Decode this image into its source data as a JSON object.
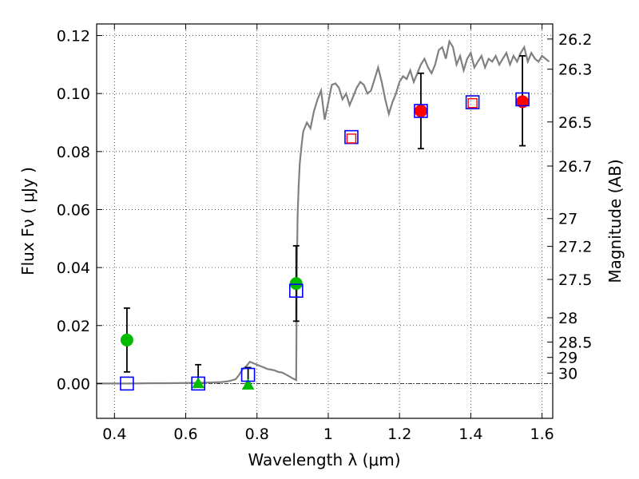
{
  "chart_data": {
    "type": "scatter",
    "title": "",
    "xlabel": "Wavelength  λ (μm)",
    "ylabel": "Flux  Fν  ( μJy )",
    "y2label": "Magnitude (AB)",
    "xlim": [
      0.35,
      1.63
    ],
    "ylim": [
      -0.012,
      0.124
    ],
    "grid": true,
    "xticks": [
      0.4,
      0.6,
      0.8,
      1.0,
      1.2,
      1.4,
      1.6
    ],
    "xtick_labels": [
      "0.4",
      "0.6",
      "0.8",
      "1",
      "1.2",
      "1.4",
      "1.6"
    ],
    "yticks": [
      0.0,
      0.02,
      0.04,
      0.06,
      0.08,
      0.1,
      0.12
    ],
    "ytick_labels": [
      "0.00",
      "0.02",
      "0.04",
      "0.06",
      "0.08",
      "0.10",
      "0.12"
    ],
    "mag_ticks": [
      {
        "label": "26.2",
        "flux": 0.1188
      },
      {
        "label": "26.3",
        "flux": 0.1084
      },
      {
        "label": "26.5",
        "flux": 0.0902
      },
      {
        "label": "26.7",
        "flux": 0.075
      },
      {
        "label": "27",
        "flux": 0.0569
      },
      {
        "label": "27.2",
        "flux": 0.0473
      },
      {
        "label": "27.5",
        "flux": 0.0359
      },
      {
        "label": "28",
        "flux": 0.0227
      },
      {
        "label": "28.5",
        "flux": 0.0143
      },
      {
        "label": "29",
        "flux": 0.009
      },
      {
        "label": "30",
        "flux": 0.0036
      }
    ],
    "series": [
      {
        "type": "line",
        "color": "#808080",
        "x": [
          0.35,
          0.4,
          0.45,
          0.5,
          0.55,
          0.6,
          0.65,
          0.7,
          0.72,
          0.74,
          0.75,
          0.76,
          0.77,
          0.78,
          0.79,
          0.8,
          0.81,
          0.82,
          0.83,
          0.84,
          0.85,
          0.86,
          0.87,
          0.88,
          0.89,
          0.9,
          0.905,
          0.91,
          0.912,
          0.914,
          0.917,
          0.92,
          0.925,
          0.93,
          0.94,
          0.95,
          0.96,
          0.97,
          0.98,
          0.99,
          1.0,
          1.01,
          1.02,
          1.03,
          1.04,
          1.05,
          1.06,
          1.07,
          1.08,
          1.09,
          1.1,
          1.11,
          1.12,
          1.13,
          1.14,
          1.15,
          1.16,
          1.17,
          1.18,
          1.19,
          1.2,
          1.21,
          1.22,
          1.23,
          1.24,
          1.25,
          1.26,
          1.27,
          1.28,
          1.29,
          1.3,
          1.31,
          1.32,
          1.33,
          1.34,
          1.35,
          1.36,
          1.37,
          1.38,
          1.39,
          1.4,
          1.41,
          1.42,
          1.43,
          1.44,
          1.45,
          1.46,
          1.47,
          1.48,
          1.49,
          1.5,
          1.51,
          1.52,
          1.53,
          1.54,
          1.55,
          1.56,
          1.57,
          1.58,
          1.59,
          1.6,
          1.61,
          1.62
        ],
        "y": [
          0.0,
          0.0,
          0.0,
          0.0001,
          0.0001,
          0.0002,
          0.0003,
          0.0005,
          0.0008,
          0.0015,
          0.003,
          0.005,
          0.006,
          0.0075,
          0.007,
          0.0065,
          0.006,
          0.0055,
          0.005,
          0.0048,
          0.0045,
          0.004,
          0.0038,
          0.0032,
          0.0025,
          0.0018,
          0.0015,
          0.0012,
          0.04,
          0.058,
          0.068,
          0.076,
          0.082,
          0.087,
          0.09,
          0.088,
          0.094,
          0.098,
          0.101,
          0.091,
          0.097,
          0.103,
          0.1035,
          0.102,
          0.098,
          0.1,
          0.096,
          0.099,
          0.102,
          0.104,
          0.103,
          0.1,
          0.101,
          0.105,
          0.109,
          0.104,
          0.098,
          0.093,
          0.097,
          0.1,
          0.104,
          0.106,
          0.105,
          0.108,
          0.104,
          0.107,
          0.11,
          0.112,
          0.109,
          0.107,
          0.11,
          0.115,
          0.116,
          0.112,
          0.118,
          0.116,
          0.11,
          0.113,
          0.108,
          0.112,
          0.114,
          0.109,
          0.111,
          0.113,
          0.109,
          0.112,
          0.111,
          0.113,
          0.11,
          0.112,
          0.114,
          0.11,
          0.113,
          0.111,
          0.114,
          0.116,
          0.111,
          0.114,
          0.112,
          0.111,
          0.113,
          0.112,
          0.111
        ]
      },
      {
        "type": "open-square",
        "color": "#0000ff",
        "x": [
          0.435,
          0.635,
          0.775,
          0.91,
          1.065,
          1.26,
          1.405,
          1.545
        ],
        "y": [
          0.0,
          0.0,
          0.003,
          0.032,
          0.085,
          0.094,
          0.097,
          0.098
        ]
      },
      {
        "type": "open-square-small",
        "color": "#ff0000",
        "x": [
          1.065,
          1.405
        ],
        "y": [
          0.0845,
          0.0967
        ]
      },
      {
        "type": "circle",
        "color": "#00bb00",
        "x": [
          0.435,
          0.91
        ],
        "y": [
          0.015,
          0.0345
        ]
      },
      {
        "type": "circle",
        "color": "#ff0000",
        "x": [
          1.26,
          1.545
        ],
        "y": [
          0.094,
          0.0972
        ]
      },
      {
        "type": "triangle",
        "color": "#00bb00",
        "x": [
          0.635,
          0.775
        ],
        "y": [
          0.0,
          -0.0005
        ]
      }
    ],
    "errorbars": [
      {
        "x": 0.435,
        "low": 0.004,
        "high": 0.026
      },
      {
        "x": 0.635,
        "low": 0.0,
        "high": 0.0065
      },
      {
        "x": 0.775,
        "low": 0.0,
        "high": 0.0055
      },
      {
        "x": 0.91,
        "low": 0.0215,
        "high": 0.0475
      },
      {
        "x": 1.26,
        "low": 0.081,
        "high": 0.107
      },
      {
        "x": 1.545,
        "low": 0.082,
        "high": 0.113
      }
    ]
  }
}
